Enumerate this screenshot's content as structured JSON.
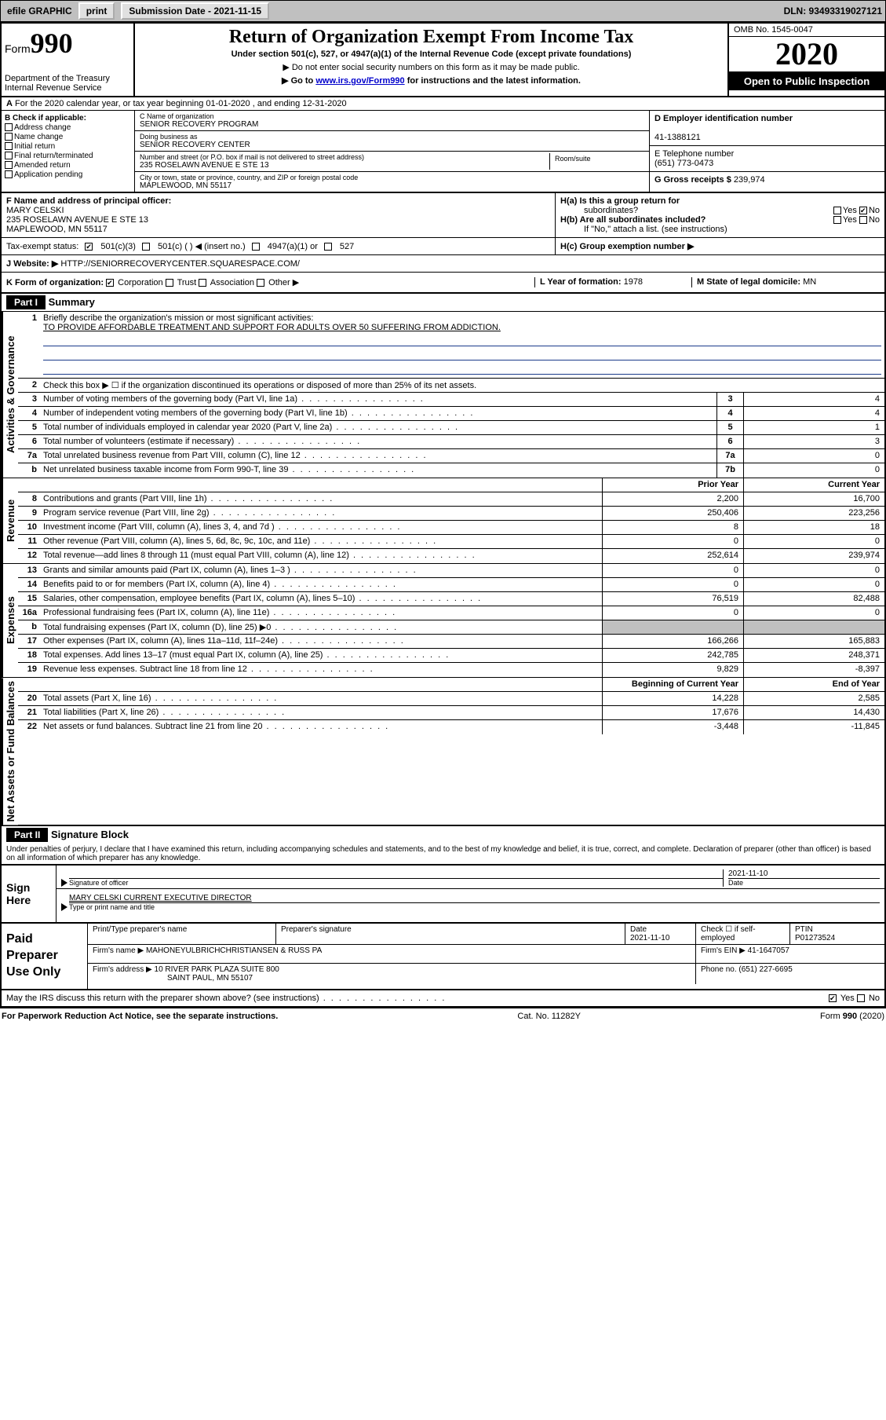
{
  "topbar": {
    "efile": "efile GRAPHIC",
    "print": "print",
    "submission_label": "Submission Date - 2021-11-15",
    "dln": "DLN: 93493319027121"
  },
  "header": {
    "form_prefix": "Form",
    "form_number": "990",
    "dept": "Department of the Treasury\nInternal Revenue Service",
    "title": "Return of Organization Exempt From Income Tax",
    "subtitle": "Under section 501(c), 527, or 4947(a)(1) of the Internal Revenue Code (except private foundations)",
    "note1": "▶ Do not enter social security numbers on this form as it may be made public.",
    "note2_pre": "▶ Go to ",
    "note2_link": "www.irs.gov/Form990",
    "note2_post": " for instructions and the latest information.",
    "omb": "OMB No. 1545-0047",
    "year": "2020",
    "inspect": "Open to Public Inspection"
  },
  "line_a": "For the 2020 calendar year, or tax year beginning 01-01-2020   , and ending 12-31-2020",
  "col_b": {
    "label": "B Check if applicable:",
    "opts": [
      "Address change",
      "Name change",
      "Initial return",
      "Final return/terminated",
      "Amended return",
      "Application pending"
    ]
  },
  "org": {
    "name_lbl": "C Name of organization",
    "name": "SENIOR RECOVERY PROGRAM",
    "dba_lbl": "Doing business as",
    "dba": "SENIOR RECOVERY CENTER",
    "addr_lbl": "Number and street (or P.O. box if mail is not delivered to street address)",
    "room_lbl": "Room/suite",
    "addr": "235 ROSELAWN AVENUE E STE 13",
    "city_lbl": "City or town, state or province, country, and ZIP or foreign postal code",
    "city": "MAPLEWOOD, MN  55117"
  },
  "col_d": {
    "ein_lbl": "D Employer identification number",
    "ein": "41-1388121",
    "tel_lbl": "E Telephone number",
    "tel": "(651) 773-0473",
    "gross_lbl": "G Gross receipts $",
    "gross": "239,974"
  },
  "row_f": {
    "lbl": "F Name and address of principal officer:",
    "name": "MARY CELSKI",
    "addr1": "235 ROSELAWN AVENUE E STE 13",
    "addr2": "MAPLEWOOD, MN  55117",
    "ha_lbl": "H(a)  Is this a group return for",
    "ha_sub": "subordinates?",
    "hb_lbl": "H(b)  Are all subordinates included?",
    "hb_note": "If \"No,\" attach a list. (see instructions)",
    "yes": "Yes",
    "no": "No"
  },
  "row_i": {
    "lbl": "Tax-exempt status:",
    "o1": "501(c)(3)",
    "o2": "501(c) (  ) ◀ (insert no.)",
    "o3": "4947(a)(1) or",
    "o4": "527",
    "hc": "H(c)  Group exemption number ▶"
  },
  "row_j": {
    "lbl": "J    Website: ▶",
    "val": "HTTP://SENIORRECOVERYCENTER.SQUARESPACE.COM/"
  },
  "row_k": {
    "lbl": "K Form of organization:",
    "o1": "Corporation",
    "o2": "Trust",
    "o3": "Association",
    "o4": "Other ▶",
    "l_lbl": "L Year of formation:",
    "l_val": "1978",
    "m_lbl": "M State of legal domicile:",
    "m_val": "MN"
  },
  "part1": {
    "hdr": "Part I",
    "title": "Summary",
    "q1": "Briefly describe the organization's mission or most significant activities:",
    "q1_ans": "TO PROVIDE AFFORDABLE TREATMENT AND SUPPORT FOR ADULTS OVER 50 SUFFERING FROM ADDICTION.",
    "q2": "Check this box ▶ ☐  if the organization discontinued its operations or disposed of more than 25% of its net assets.",
    "tab_gov": "Activities & Governance",
    "tab_rev": "Revenue",
    "tab_exp": "Expenses",
    "tab_net": "Net Assets or Fund Balances",
    "prior_hdr": "Prior Year",
    "curr_hdr": "Current Year",
    "boc_hdr": "Beginning of Current Year",
    "eoy_hdr": "End of Year",
    "gov_lines": [
      {
        "n": "3",
        "t": "Number of voting members of the governing body (Part VI, line 1a)",
        "b": "3",
        "v": "4"
      },
      {
        "n": "4",
        "t": "Number of independent voting members of the governing body (Part VI, line 1b)",
        "b": "4",
        "v": "4"
      },
      {
        "n": "5",
        "t": "Total number of individuals employed in calendar year 2020 (Part V, line 2a)",
        "b": "5",
        "v": "1"
      },
      {
        "n": "6",
        "t": "Total number of volunteers (estimate if necessary)",
        "b": "6",
        "v": "3"
      },
      {
        "n": "7a",
        "t": "Total unrelated business revenue from Part VIII, column (C), line 12",
        "b": "7a",
        "v": "0"
      },
      {
        "n": "b",
        "t": "Net unrelated business taxable income from Form 990-T, line 39",
        "b": "7b",
        "v": "0"
      }
    ],
    "rev_lines": [
      {
        "n": "8",
        "t": "Contributions and grants (Part VIII, line 1h)",
        "p": "2,200",
        "c": "16,700"
      },
      {
        "n": "9",
        "t": "Program service revenue (Part VIII, line 2g)",
        "p": "250,406",
        "c": "223,256"
      },
      {
        "n": "10",
        "t": "Investment income (Part VIII, column (A), lines 3, 4, and 7d )",
        "p": "8",
        "c": "18"
      },
      {
        "n": "11",
        "t": "Other revenue (Part VIII, column (A), lines 5, 6d, 8c, 9c, 10c, and 11e)",
        "p": "0",
        "c": "0"
      },
      {
        "n": "12",
        "t": "Total revenue—add lines 8 through 11 (must equal Part VIII, column (A), line 12)",
        "p": "252,614",
        "c": "239,974"
      }
    ],
    "exp_lines": [
      {
        "n": "13",
        "t": "Grants and similar amounts paid (Part IX, column (A), lines 1–3 )",
        "p": "0",
        "c": "0"
      },
      {
        "n": "14",
        "t": "Benefits paid to or for members (Part IX, column (A), line 4)",
        "p": "0",
        "c": "0"
      },
      {
        "n": "15",
        "t": "Salaries, other compensation, employee benefits (Part IX, column (A), lines 5–10)",
        "p": "76,519",
        "c": "82,488"
      },
      {
        "n": "16a",
        "t": "Professional fundraising fees (Part IX, column (A), line 11e)",
        "p": "0",
        "c": "0"
      },
      {
        "n": "b",
        "t": "Total fundraising expenses (Part IX, column (D), line 25) ▶0",
        "p": "",
        "c": "",
        "shade": true
      },
      {
        "n": "17",
        "t": "Other expenses (Part IX, column (A), lines 11a–11d, 11f–24e)",
        "p": "166,266",
        "c": "165,883"
      },
      {
        "n": "18",
        "t": "Total expenses. Add lines 13–17 (must equal Part IX, column (A), line 25)",
        "p": "242,785",
        "c": "248,371"
      },
      {
        "n": "19",
        "t": "Revenue less expenses. Subtract line 18 from line 12",
        "p": "9,829",
        "c": "-8,397"
      }
    ],
    "net_lines": [
      {
        "n": "20",
        "t": "Total assets (Part X, line 16)",
        "p": "14,228",
        "c": "2,585"
      },
      {
        "n": "21",
        "t": "Total liabilities (Part X, line 26)",
        "p": "17,676",
        "c": "14,430"
      },
      {
        "n": "22",
        "t": "Net assets or fund balances. Subtract line 21 from line 20",
        "p": "-3,448",
        "c": "-11,845"
      }
    ]
  },
  "part2": {
    "hdr": "Part II",
    "title": "Signature Block",
    "declare": "Under penalties of perjury, I declare that I have examined this return, including accompanying schedules and statements, and to the best of my knowledge and belief, it is true, correct, and complete. Declaration of preparer (other than officer) is based on all information of which preparer has any knowledge."
  },
  "sign": {
    "here": "Sign Here",
    "sig_lbl": "Signature of officer",
    "date_lbl": "Date",
    "date": "2021-11-10",
    "name": "MARY CELSKI CURRENT EXECUTIVE DIRECTOR",
    "name_lbl": "Type or print name and title"
  },
  "paid": {
    "left": "Paid Preparer Use Only",
    "h1": "Print/Type preparer's name",
    "h2": "Preparer's signature",
    "h3": "Date",
    "h3v": "2021-11-10",
    "h4": "Check ☐ if self-employed",
    "h5": "PTIN",
    "h5v": "P01273524",
    "firm_lbl": "Firm's name    ▶",
    "firm": "MAHONEYULBRICHCHRISTIANSEN & RUSS PA",
    "ein_lbl": "Firm's EIN ▶",
    "ein": "41-1647057",
    "addr_lbl": "Firm's address ▶",
    "addr1": "10 RIVER PARK PLAZA SUITE 800",
    "addr2": "SAINT PAUL, MN  55107",
    "phone_lbl": "Phone no.",
    "phone": "(651) 227-6695"
  },
  "may": {
    "q": "May the IRS discuss this return with the preparer shown above? (see instructions)",
    "yes": "Yes",
    "no": "No"
  },
  "footer": {
    "left": "For Paperwork Reduction Act Notice, see the separate instructions.",
    "mid": "Cat. No. 11282Y",
    "right": "Form 990 (2020)"
  }
}
